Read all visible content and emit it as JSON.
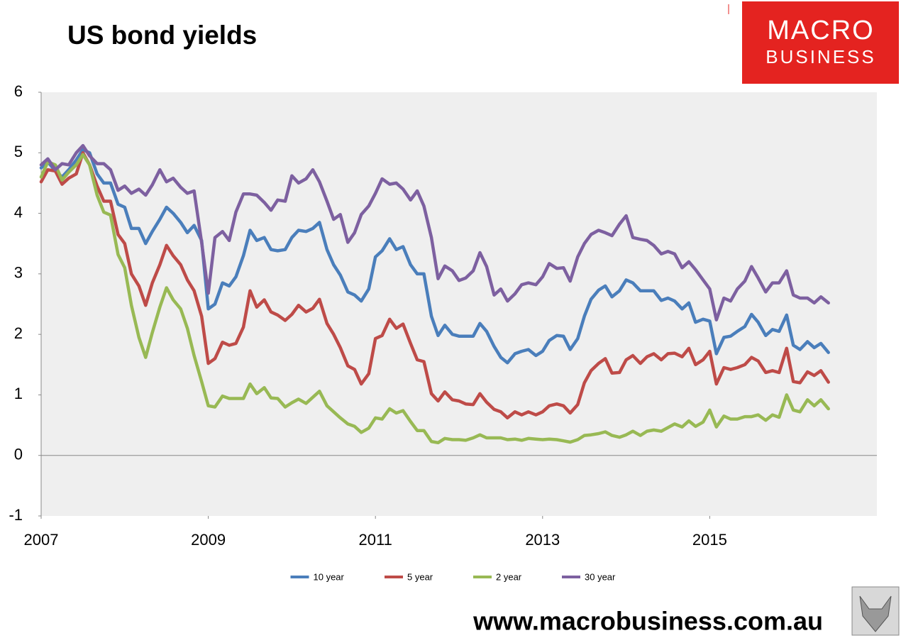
{
  "chart_data": {
    "type": "line",
    "title": "US bond yields",
    "x": [
      2007,
      2007.08,
      2007.17,
      2007.25,
      2007.33,
      2007.42,
      2007.5,
      2007.58,
      2007.67,
      2007.75,
      2007.83,
      2007.92,
      2008,
      2008.08,
      2008.17,
      2008.25,
      2008.33,
      2008.42,
      2008.5,
      2008.58,
      2008.67,
      2008.75,
      2008.83,
      2008.92,
      2009,
      2009.08,
      2009.17,
      2009.25,
      2009.33,
      2009.42,
      2009.5,
      2009.58,
      2009.67,
      2009.75,
      2009.83,
      2009.92,
      2010,
      2010.08,
      2010.17,
      2010.25,
      2010.33,
      2010.42,
      2010.5,
      2010.58,
      2010.67,
      2010.75,
      2010.83,
      2010.92,
      2011,
      2011.08,
      2011.17,
      2011.25,
      2011.33,
      2011.42,
      2011.5,
      2011.58,
      2011.67,
      2011.75,
      2011.83,
      2011.92,
      2012,
      2012.08,
      2012.17,
      2012.25,
      2012.33,
      2012.42,
      2012.5,
      2012.58,
      2012.67,
      2012.75,
      2012.83,
      2012.92,
      2013,
      2013.08,
      2013.17,
      2013.25,
      2013.33,
      2013.42,
      2013.5,
      2013.58,
      2013.67,
      2013.75,
      2013.83,
      2013.92,
      2014,
      2014.08,
      2014.17,
      2014.25,
      2014.33,
      2014.42,
      2014.5,
      2014.58,
      2014.67,
      2014.75,
      2014.83,
      2014.92,
      2015,
      2015.08,
      2015.17,
      2015.25,
      2015.33,
      2015.42,
      2015.5,
      2015.58,
      2015.67,
      2015.75,
      2015.83,
      2015.92,
      2016,
      2016.08,
      2016.17,
      2016.25,
      2016.33,
      2016.42
    ],
    "series": [
      {
        "name": "10 year",
        "color": "#4a7ebb",
        "values": [
          4.75,
          4.85,
          4.7,
          4.6,
          4.72,
          4.88,
          5.05,
          5.0,
          4.65,
          4.5,
          4.5,
          4.15,
          4.1,
          3.75,
          3.75,
          3.5,
          3.7,
          3.9,
          4.1,
          4.0,
          3.85,
          3.68,
          3.8,
          3.55,
          2.42,
          2.5,
          2.85,
          2.8,
          2.95,
          3.3,
          3.72,
          3.55,
          3.6,
          3.4,
          3.38,
          3.4,
          3.6,
          3.72,
          3.7,
          3.75,
          3.85,
          3.4,
          3.15,
          2.98,
          2.7,
          2.65,
          2.55,
          2.75,
          3.28,
          3.38,
          3.58,
          3.4,
          3.45,
          3.15,
          3.0,
          3.0,
          2.3,
          1.98,
          2.15,
          2.0,
          1.97,
          1.97,
          1.97,
          2.18,
          2.05,
          1.8,
          1.62,
          1.53,
          1.68,
          1.72,
          1.75,
          1.65,
          1.72,
          1.9,
          1.98,
          1.97,
          1.75,
          1.93,
          2.3,
          2.58,
          2.73,
          2.8,
          2.62,
          2.72,
          2.9,
          2.85,
          2.72,
          2.72,
          2.72,
          2.56,
          2.6,
          2.55,
          2.42,
          2.52,
          2.2,
          2.25,
          2.22,
          1.68,
          1.95,
          1.97,
          2.05,
          2.13,
          2.33,
          2.2,
          1.98,
          2.08,
          2.05,
          2.32,
          1.82,
          1.75,
          1.88,
          1.78,
          1.85,
          1.7
        ]
      },
      {
        "name": "5 year",
        "color": "#be4b48",
        "values": [
          4.52,
          4.72,
          4.7,
          4.48,
          4.58,
          4.65,
          5.0,
          4.8,
          4.45,
          4.2,
          4.2,
          3.65,
          3.5,
          3.0,
          2.8,
          2.48,
          2.85,
          3.15,
          3.47,
          3.3,
          3.15,
          2.9,
          2.72,
          2.3,
          1.52,
          1.6,
          1.87,
          1.82,
          1.85,
          2.12,
          2.72,
          2.45,
          2.57,
          2.37,
          2.32,
          2.23,
          2.33,
          2.48,
          2.37,
          2.43,
          2.58,
          2.18,
          2.0,
          1.78,
          1.48,
          1.42,
          1.18,
          1.35,
          1.93,
          1.98,
          2.25,
          2.1,
          2.17,
          1.85,
          1.58,
          1.55,
          1.02,
          0.9,
          1.05,
          0.92,
          0.9,
          0.85,
          0.84,
          1.02,
          0.88,
          0.76,
          0.72,
          0.62,
          0.72,
          0.67,
          0.72,
          0.67,
          0.72,
          0.82,
          0.85,
          0.82,
          0.7,
          0.84,
          1.2,
          1.4,
          1.52,
          1.6,
          1.36,
          1.37,
          1.58,
          1.65,
          1.52,
          1.63,
          1.68,
          1.58,
          1.68,
          1.69,
          1.63,
          1.77,
          1.5,
          1.58,
          1.72,
          1.18,
          1.45,
          1.42,
          1.45,
          1.5,
          1.62,
          1.56,
          1.37,
          1.4,
          1.37,
          1.77,
          1.22,
          1.2,
          1.38,
          1.32,
          1.4,
          1.21
        ]
      },
      {
        "name": "2 year",
        "color": "#98b954",
        "values": [
          4.6,
          4.85,
          4.8,
          4.55,
          4.68,
          4.8,
          4.97,
          4.8,
          4.3,
          4.02,
          3.97,
          3.32,
          3.1,
          2.48,
          1.95,
          1.62,
          2.03,
          2.45,
          2.77,
          2.57,
          2.42,
          2.1,
          1.65,
          1.22,
          0.82,
          0.8,
          0.98,
          0.94,
          0.94,
          0.94,
          1.18,
          1.02,
          1.12,
          0.95,
          0.94,
          0.8,
          0.87,
          0.93,
          0.86,
          0.96,
          1.06,
          0.82,
          0.72,
          0.62,
          0.52,
          0.48,
          0.38,
          0.45,
          0.62,
          0.6,
          0.77,
          0.7,
          0.74,
          0.56,
          0.41,
          0.41,
          0.23,
          0.21,
          0.28,
          0.26,
          0.26,
          0.25,
          0.29,
          0.34,
          0.29,
          0.29,
          0.29,
          0.26,
          0.27,
          0.25,
          0.28,
          0.27,
          0.26,
          0.27,
          0.26,
          0.24,
          0.22,
          0.26,
          0.33,
          0.34,
          0.36,
          0.39,
          0.33,
          0.3,
          0.34,
          0.4,
          0.33,
          0.4,
          0.42,
          0.4,
          0.46,
          0.52,
          0.47,
          0.57,
          0.48,
          0.55,
          0.75,
          0.47,
          0.65,
          0.6,
          0.6,
          0.64,
          0.64,
          0.67,
          0.58,
          0.67,
          0.63,
          1.0,
          0.75,
          0.72,
          0.92,
          0.82,
          0.92,
          0.77
        ]
      },
      {
        "name": "30 year",
        "color": "#7d60a0",
        "values": [
          4.8,
          4.9,
          4.72,
          4.82,
          4.8,
          5.0,
          5.12,
          4.95,
          4.82,
          4.82,
          4.72,
          4.38,
          4.45,
          4.33,
          4.4,
          4.3,
          4.47,
          4.72,
          4.52,
          4.58,
          4.43,
          4.33,
          4.37,
          3.52,
          2.68,
          3.6,
          3.7,
          3.55,
          4.02,
          4.32,
          4.32,
          4.3,
          4.18,
          4.05,
          4.22,
          4.2,
          4.62,
          4.5,
          4.57,
          4.72,
          4.52,
          4.2,
          3.9,
          3.98,
          3.52,
          3.68,
          3.98,
          4.12,
          4.33,
          4.57,
          4.48,
          4.5,
          4.4,
          4.22,
          4.37,
          4.12,
          3.6,
          2.92,
          3.13,
          3.05,
          2.89,
          2.93,
          3.05,
          3.35,
          3.12,
          2.65,
          2.75,
          2.55,
          2.67,
          2.82,
          2.85,
          2.82,
          2.95,
          3.17,
          3.09,
          3.1,
          2.88,
          3.28,
          3.5,
          3.65,
          3.72,
          3.68,
          3.63,
          3.82,
          3.96,
          3.6,
          3.57,
          3.55,
          3.47,
          3.33,
          3.37,
          3.33,
          3.1,
          3.2,
          3.07,
          2.9,
          2.75,
          2.24,
          2.6,
          2.55,
          2.75,
          2.88,
          3.12,
          2.93,
          2.7,
          2.85,
          2.85,
          3.05,
          2.65,
          2.6,
          2.6,
          2.52,
          2.62,
          2.52
        ]
      }
    ],
    "xlim": [
      2007,
      2017
    ],
    "xticks": [
      2007,
      2009,
      2011,
      2013,
      2015
    ],
    "ylim": [
      -1,
      6
    ],
    "yticks": [
      -1,
      0,
      1,
      2,
      3,
      4,
      5,
      6
    ],
    "grid": false,
    "legend": "bottom"
  },
  "logo": {
    "line1": "MACRO",
    "line2": "BUSINESS"
  },
  "footer": {
    "url": "www.macrobusiness.com.au"
  }
}
